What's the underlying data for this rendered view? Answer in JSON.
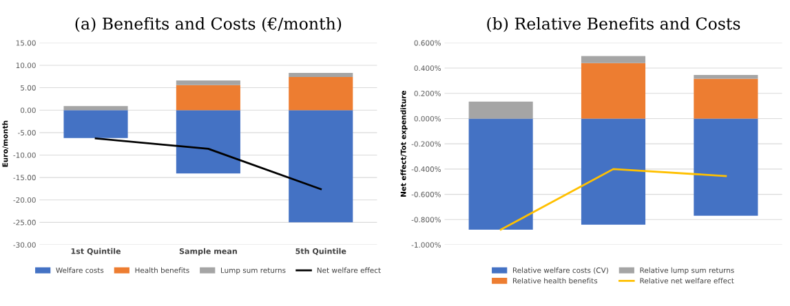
{
  "chart_data": [
    {
      "type": "bar",
      "stacked": true,
      "title": "(a) Benefits and Costs (€/month)",
      "ylabel": "Euro/month",
      "categories": [
        "1st Quintile",
        "Sample mean",
        "5th Quintile"
      ],
      "series": [
        {
          "name": "Welfare costs",
          "color": "#4472c4",
          "values": [
            -6.2,
            -14.1,
            -25.0
          ]
        },
        {
          "name": "Health benefits",
          "color": "#ed7d31",
          "values": [
            0,
            5.6,
            7.4
          ]
        },
        {
          "name": "Lump sum returns",
          "color": "#a5a5a5",
          "values": [
            0.9,
            1.0,
            0.9
          ]
        },
        {
          "name": "Net welfare effect",
          "color": "#000000",
          "type": "line",
          "values": [
            -6.3,
            -8.6,
            -17.6
          ]
        }
      ],
      "ylim": [
        -30,
        15
      ],
      "yticks": [
        {
          "value": -30,
          "label": "-30.00"
        },
        {
          "value": -25,
          "label": "-25.00"
        },
        {
          "value": -20,
          "label": "-20.00"
        },
        {
          "value": -15,
          "label": "-15.00"
        },
        {
          "value": -10,
          "label": "-10.00"
        },
        {
          "value": -5,
          "label": "-5.00"
        },
        {
          "value": 0,
          "label": "0.00"
        },
        {
          "value": 5,
          "label": "5.00"
        },
        {
          "value": 10,
          "label": "10.00"
        },
        {
          "value": 15,
          "label": "15.00"
        }
      ],
      "grid": "y",
      "legend": "bottom",
      "marker": "none",
      "line_style": "solid"
    },
    {
      "type": "bar",
      "stacked": true,
      "title": "(b) Relative Benefits and Costs",
      "ylabel": "Net effect/Tot expenditure",
      "categories": [
        null,
        null,
        null
      ],
      "series": [
        {
          "name": "Relative welfare costs (CV)",
          "color": "#4472c4",
          "values": [
            -0.88,
            -0.84,
            -0.77
          ]
        },
        {
          "name": "Relative health benefits",
          "color": "#ed7d31",
          "values": [
            0,
            0.44,
            0.315
          ]
        },
        {
          "name": "Relative lump sum returns",
          "color": "#a5a5a5",
          "values": [
            0.135,
            0.055,
            0.03
          ]
        },
        {
          "name": "Relative net welfare effect",
          "color": "#ffc000",
          "type": "line",
          "values": [
            -0.88,
            -0.4,
            -0.455
          ]
        }
      ],
      "ylim": [
        -1.0,
        0.6
      ],
      "yticks": [
        {
          "value": -1.0,
          "label": "-1.000%"
        },
        {
          "value": -0.8,
          "label": "-0.800%"
        },
        {
          "value": -0.6,
          "label": "-0.600%"
        },
        {
          "value": -0.4,
          "label": "-0.400%"
        },
        {
          "value": -0.2,
          "label": "-0.200%"
        },
        {
          "value": 0,
          "label": "0.000%"
        },
        {
          "value": 0.2,
          "label": "0.200%"
        },
        {
          "value": 0.4,
          "label": "0.400%"
        },
        {
          "value": 0.6,
          "label": "0.600%"
        }
      ],
      "grid": "y",
      "legend": "bottom",
      "marker": "none",
      "line_style": "solid"
    }
  ]
}
